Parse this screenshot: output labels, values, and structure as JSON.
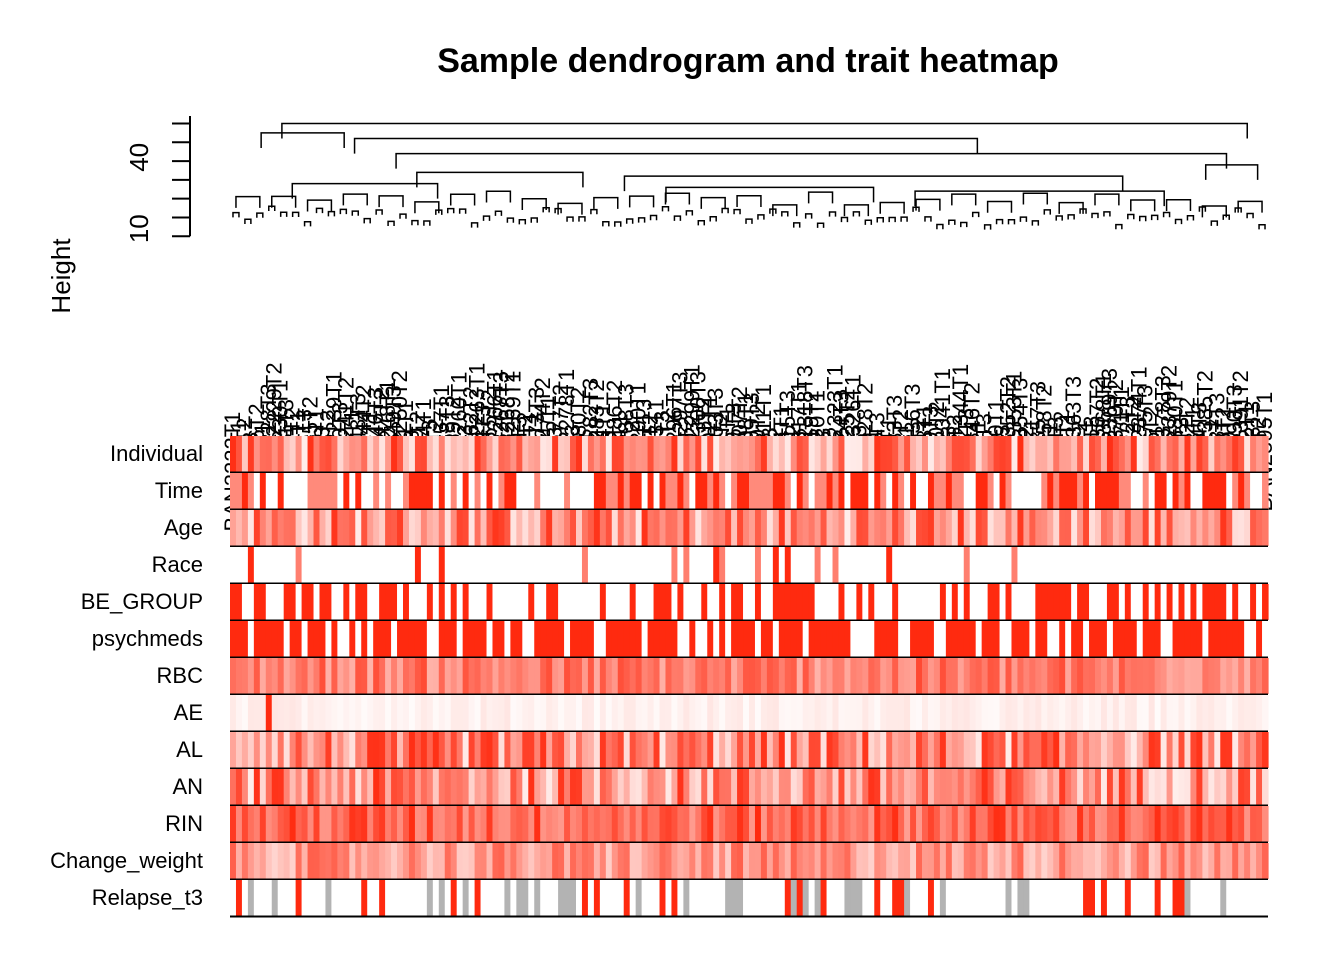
{
  "chart_data": {
    "type": "heatmap",
    "title": "Sample dendrogram and trait heatmap",
    "ylabel": "Height",
    "y_ticks": [
      10,
      40
    ],
    "ylim": [
      0,
      66
    ],
    "sample_count": 174,
    "sample_labels": [
      "BAN2222T1",
      "BAN2223T1",
      "BAN2224T2",
      "BAN2225T3",
      "BAN2226T2",
      "BAN2227T1",
      "BAN2228T3",
      "BAN2229T2",
      "BAN2230T1",
      "BAN2231T3",
      "BAN2232T2",
      "BAN2233T1",
      "BAN2234T3",
      "BAN2235T2",
      "BAN2236T1",
      "BAN2237T3",
      "BAN2238T2",
      "BAN2239T1",
      "BAN2240T3",
      "BAN2241T2",
      "BAN2242T1",
      "BAN2243T3",
      "BAN2244T2",
      "BAN2245T1",
      "BAN2246T3",
      "BAN2247T2",
      "BAN2248T1",
      "BAN2249T3",
      "BAN2250T2",
      "BAN2251T1",
      "BAN2252T3",
      "BAN2253T2",
      "BAN2254T1",
      "BAN2255T3",
      "BAN2256T2",
      "BAN2257T1",
      "BAN2258T3",
      "BAN2259T2",
      "BAN2260T1",
      "BAN2261T3",
      "BAN2262T2",
      "BAN2263T1",
      "BAN2264T3",
      "BAN2265T2",
      "BAN2266T1",
      "BAN2267T3",
      "BAN2268T2",
      "BAN2269T1",
      "BAN2270T3",
      "BAN2271T2",
      "BAN2272T1",
      "BAN2273T3",
      "BAN2274T2",
      "BAN2275T1",
      "BAN2276T3",
      "BAN2277T2",
      "BAN2278T1",
      "BAN2279T3",
      "BAN2280T2",
      "BAN2281T1",
      "BAN2282T3",
      "BAN2283T2",
      "BAN2284T1",
      "BAN2285T3",
      "BAN2286T2",
      "BAN2287T1",
      "BAN2288T3",
      "BAN2289T2",
      "BAN2290T1",
      "BAN2291T3",
      "BAN2292T2",
      "BAN2293T1",
      "BAN2294T3",
      "BAN2295T2",
      "BAN2296T1",
      "BAN2297T3",
      "BAN2298T2",
      "BAN2299T1",
      "BAN2300T3",
      "BAN2301T2",
      "BAN2302T1",
      "BAN2303T3",
      "BAN2304T2",
      "BAN2305T1",
      "BAN2306T3",
      "BAN2307T2",
      "BAN2308T1",
      "BAN2309T3",
      "BAN2310T2",
      "BAN2311T1",
      "BAN2312T3",
      "BAN2313T2",
      "BAN2314T1",
      "BAN2315T3",
      "BAN2316T2",
      "BAN2317T1",
      "BAN2318T3",
      "BAN2319T2",
      "BAN2320T1",
      "BAN2321T3",
      "BAN2322T2",
      "BAN2323T1",
      "BAN2324T3",
      "BAN2325T2",
      "BAN2326T1",
      "BAN2327T3",
      "BAN2328T2",
      "BAN2329T1",
      "BAN2330T3",
      "BAN2331T2",
      "BAN2332T1",
      "BAN2333T3",
      "BAN2334T2",
      "BAN2335T1",
      "BAN2336T3",
      "BAN2337T2",
      "BAN2338T1",
      "BAN2339T3",
      "BAN2340T2",
      "BAN2341T1",
      "BAN2342T3",
      "BAN2343T2",
      "BAN2344T1",
      "BAN2345T3",
      "BAN2346T2",
      "BAN2347T1",
      "BAN2348T3",
      "BAN2349T2",
      "BAN2350T1",
      "BAN2351T3",
      "BAN2352T2",
      "BAN2353T1",
      "BAN2354T3",
      "BAN2355T2",
      "BAN2356T1",
      "BAN2357T3",
      "BAN2358T2",
      "BAN2359T1",
      "BAN2360T3",
      "BAN2361T2",
      "BAN2362T1",
      "BAN2363T3",
      "BAN2364T2",
      "BAN2365T1",
      "BAN2366T3",
      "BAN2367T2",
      "BAN2368T1",
      "BAN2369T3",
      "BAN2370T2",
      "BAN2371T1",
      "BAN2372T3",
      "BAN2373T2",
      "BAN2374T1",
      "BAN2375T3",
      "BAN2376T2",
      "BAN2377T1",
      "BAN2378T3",
      "BAN2379T2",
      "BAN2380T1",
      "BAN2381T3",
      "BAN2382T2",
      "BAN2383T1",
      "BAN2384T3",
      "BAN2385T2",
      "BAN2386T1",
      "BAN2387T3",
      "BAN2388T2",
      "BAN2389T1",
      "BAN2390T3",
      "BAN2391T2",
      "BAN2392T1",
      "BAN2393T3",
      "BAN2394T2",
      "BAN2395T1"
    ],
    "traits": [
      "Individual",
      "Time",
      "Age",
      "Race",
      "BE_GROUP",
      "psychmeds",
      "RBC",
      "AE",
      "AL",
      "AN",
      "RIN",
      "Change_weight",
      "Relapse_t3"
    ],
    "colors": {
      "high": "#ff2a0f",
      "low": "#ffffff",
      "missing": "#b3b3b3",
      "border": "#000000"
    },
    "branches": [
      {
        "x": [
          0.05,
          0.98
        ],
        "height": 62
      },
      {
        "x": [
          0.03,
          0.11
        ],
        "height": 57
      },
      {
        "x": [
          0.12,
          0.72
        ],
        "height": 54
      },
      {
        "x": [
          0.16,
          0.96
        ],
        "height": 46
      },
      {
        "x": [
          0.18,
          0.34
        ],
        "height": 36
      },
      {
        "x": [
          0.38,
          0.86
        ],
        "height": 34
      },
      {
        "x": [
          0.42,
          0.62
        ],
        "height": 28
      },
      {
        "x": [
          0.66,
          0.9
        ],
        "height": 26
      },
      {
        "x": [
          0.94,
          0.99
        ],
        "height": 40
      },
      {
        "x": [
          0.06,
          0.2
        ],
        "height": 30
      }
    ]
  }
}
